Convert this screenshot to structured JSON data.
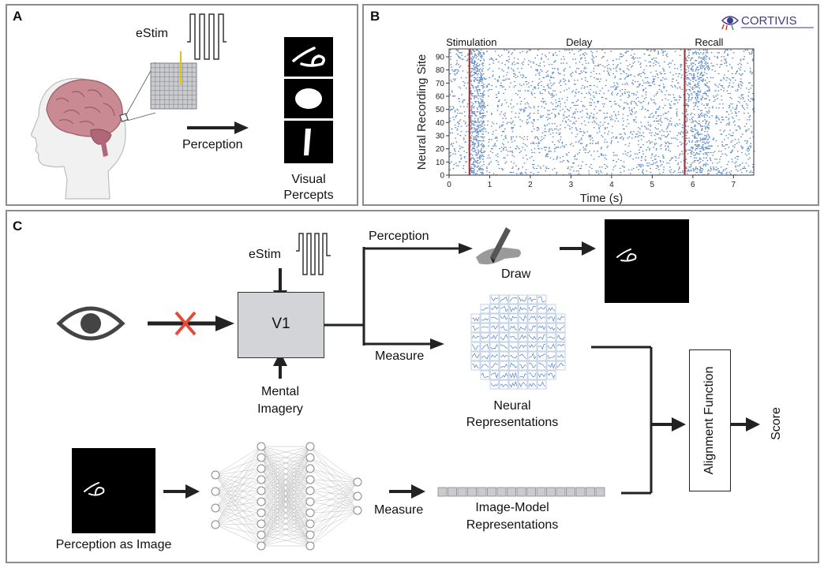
{
  "panel_a": {
    "label": "A",
    "estim": "eStim",
    "perception": "Perception",
    "percepts_caption_1": "Visual",
    "percepts_caption_2": "Percepts"
  },
  "panel_b": {
    "label": "B",
    "logo_text": "CORTIVIS",
    "chart_data": {
      "type": "scatter",
      "title": "",
      "xlabel": "Time (s)",
      "ylabel": "Neural Recording Site",
      "xlim": [
        0,
        7.5
      ],
      "ylim": [
        0,
        96
      ],
      "xticks": [
        0,
        1,
        2,
        3,
        4,
        5,
        6,
        7
      ],
      "yticks": [
        0,
        10,
        20,
        30,
        40,
        50,
        60,
        70,
        80,
        90
      ],
      "annotations": [
        {
          "text": "Stimulation",
          "x": 0.55
        },
        {
          "text": "Delay",
          "x": 3.2
        },
        {
          "text": "Recall",
          "x": 6.4
        }
      ],
      "event_lines": [
        0.5,
        5.8
      ],
      "event_color": "#a52a2a",
      "spike_color": "#4f7fbf",
      "grid": false
    }
  },
  "panel_c": {
    "label": "C",
    "estim": "eStim",
    "v1": "V1",
    "mental_1": "Mental",
    "mental_2": "Imagery",
    "perception": "Perception",
    "draw": "Draw",
    "measure_top": "Measure",
    "neural_1": "Neural",
    "neural_2": "Representations",
    "alignment": "Alignment Function",
    "score": "Score",
    "measure_bottom": "Measure",
    "image_model_1": "Image-Model",
    "image_model_2": "Representations",
    "perception_image": "Perception as Image",
    "block_color": "#e84a3a",
    "box_color": "#d3d4d7"
  }
}
